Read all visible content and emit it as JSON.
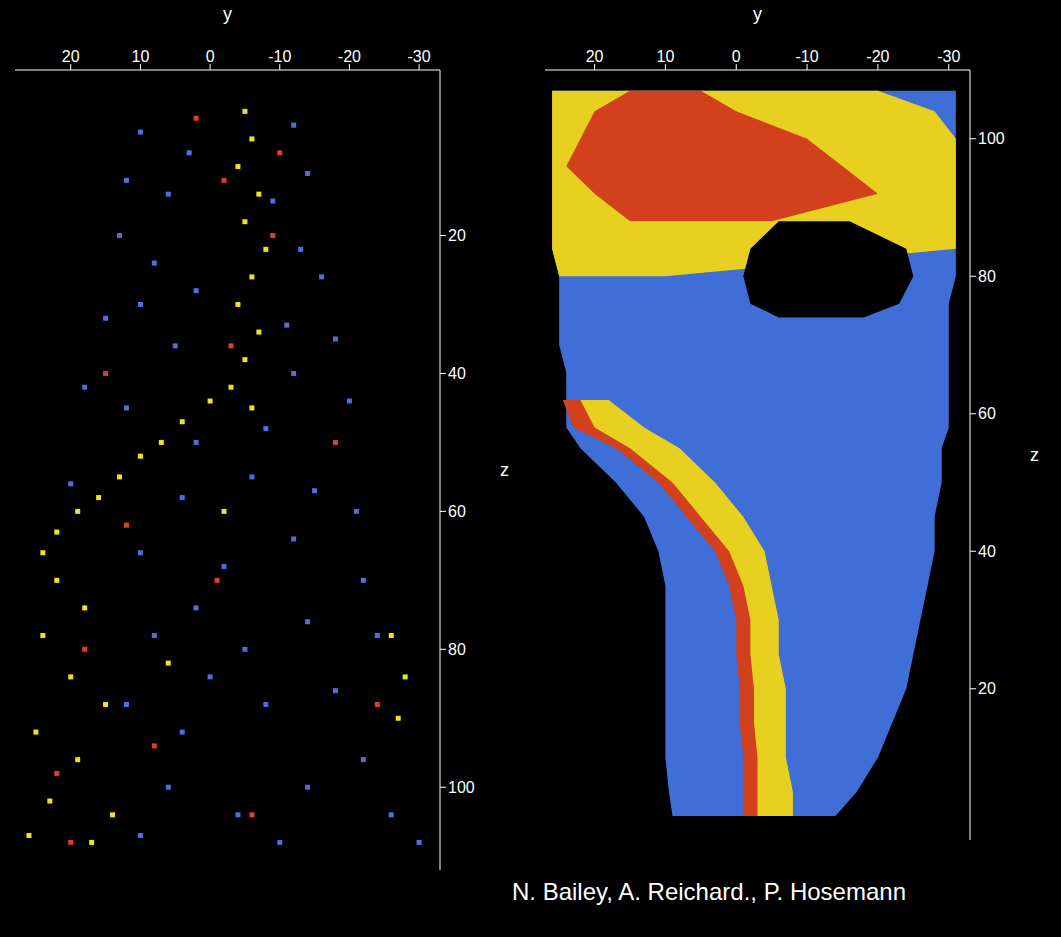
{
  "chart_data": [
    {
      "type": "scatter",
      "x_label": "y",
      "y_label": "z",
      "xlim": [
        28,
        -33
      ],
      "xticks": [
        20,
        10,
        0,
        -10,
        -20,
        -30
      ],
      "ylim": [
        112,
        -4
      ],
      "yticks": [
        20,
        40,
        60,
        80,
        100
      ],
      "grid": false,
      "marker": "square",
      "series": [
        {
          "color": "#4a6fe0",
          "values": [
            [
              10,
              5
            ],
            [
              -12,
              4
            ],
            [
              3,
              8
            ],
            [
              12,
              12
            ],
            [
              -14,
              11
            ],
            [
              6,
              14
            ],
            [
              -9,
              15
            ],
            [
              13,
              20
            ],
            [
              8,
              24
            ],
            [
              -13,
              22
            ],
            [
              -16,
              26
            ],
            [
              2,
              28
            ],
            [
              15,
              32
            ],
            [
              10,
              30
            ],
            [
              -11,
              33
            ],
            [
              -18,
              35
            ],
            [
              5,
              36
            ],
            [
              18,
              42
            ],
            [
              12,
              45
            ],
            [
              -12,
              40
            ],
            [
              -20,
              44
            ],
            [
              -8,
              48
            ],
            [
              2,
              50
            ],
            [
              20,
              56
            ],
            [
              4,
              58
            ],
            [
              -6,
              55
            ],
            [
              -15,
              57
            ],
            [
              -21,
              60
            ],
            [
              10,
              66
            ],
            [
              -2,
              68
            ],
            [
              -12,
              64
            ],
            [
              -22,
              70
            ],
            [
              2,
              74
            ],
            [
              8,
              78
            ],
            [
              -5,
              80
            ],
            [
              -14,
              76
            ],
            [
              -24,
              78
            ],
            [
              0,
              84
            ],
            [
              12,
              88
            ],
            [
              -8,
              88
            ],
            [
              -18,
              86
            ],
            [
              4,
              92
            ],
            [
              -22,
              96
            ],
            [
              6,
              100
            ],
            [
              -4,
              104
            ],
            [
              -14,
              100
            ],
            [
              -26,
              104
            ],
            [
              -30,
              108
            ],
            [
              10,
              107
            ],
            [
              -10,
              108
            ]
          ]
        },
        {
          "color": "#f2e21e",
          "values": [
            [
              -5,
              2
            ],
            [
              -6,
              6
            ],
            [
              -4,
              10
            ],
            [
              -7,
              14
            ],
            [
              -5,
              18
            ],
            [
              -8,
              22
            ],
            [
              -6,
              26
            ],
            [
              -4,
              30
            ],
            [
              -7,
              34
            ],
            [
              -5,
              38
            ],
            [
              -3,
              42
            ],
            [
              -6,
              45
            ],
            [
              0,
              44
            ],
            [
              4,
              47
            ],
            [
              7,
              50
            ],
            [
              10,
              52
            ],
            [
              13,
              55
            ],
            [
              16,
              58
            ],
            [
              19,
              60
            ],
            [
              22,
              63
            ],
            [
              24,
              66
            ],
            [
              22,
              70
            ],
            [
              18,
              74
            ],
            [
              24,
              78
            ],
            [
              20,
              84
            ],
            [
              15,
              88
            ],
            [
              25,
              92
            ],
            [
              19,
              96
            ],
            [
              23,
              102
            ],
            [
              14,
              104
            ],
            [
              26,
              107
            ],
            [
              17,
              108
            ],
            [
              -28,
              84
            ],
            [
              -27,
              90
            ],
            [
              -26,
              78
            ],
            [
              -2,
              60
            ],
            [
              6,
              82
            ]
          ]
        },
        {
          "color": "#e0401c",
          "values": [
            [
              2,
              3
            ],
            [
              -2,
              12
            ],
            [
              -9,
              20
            ],
            [
              -3,
              36
            ],
            [
              -10,
              8
            ],
            [
              12,
              62
            ],
            [
              18,
              80
            ],
            [
              22,
              98
            ],
            [
              -18,
              50
            ],
            [
              -1,
              70
            ],
            [
              8,
              94
            ],
            [
              -24,
              88
            ],
            [
              15,
              40
            ],
            [
              -6,
              104
            ],
            [
              20,
              108
            ]
          ]
        }
      ]
    },
    {
      "type": "area",
      "x_label": "y",
      "y_label": "z",
      "xlim": [
        27,
        -33
      ],
      "xticks": [
        20,
        10,
        0,
        -10,
        -20,
        -30
      ],
      "ylim": [
        110,
        -2
      ],
      "yticks": [
        20,
        40,
        60,
        80,
        100
      ],
      "grid": false,
      "annotation": "N. Bailey, A. Reichard., P. Hosemann",
      "x": [
        1.5,
        5,
        10,
        15,
        20,
        25,
        30,
        35,
        40,
        45,
        50,
        55,
        58,
        62,
        66,
        70,
        74,
        76,
        80,
        84,
        88,
        92,
        96,
        100,
        104,
        107
      ],
      "series": [
        {
          "color": "#3f6fd6",
          "values": [
            [
              -14,
              9
            ],
            [
              -17,
              9.5
            ],
            [
              -20,
              10
            ],
            [
              -22,
              10
            ],
            [
              -24,
              10
            ],
            [
              -25,
              10
            ],
            [
              -26,
              10
            ],
            [
              -27,
              10
            ],
            [
              -28,
              11
            ],
            [
              -28,
              13
            ],
            [
              -29,
              17
            ],
            [
              -29,
              22
            ],
            [
              -30,
              24
            ],
            [
              -30,
              24
            ],
            [
              -30,
              24
            ],
            [
              -30,
              25
            ],
            [
              -30,
              25
            ],
            [
              -30,
              25
            ],
            [
              -31,
              25
            ],
            [
              -31,
              26
            ],
            [
              -31,
              26
            ],
            [
              -31,
              26
            ],
            [
              -31,
              26
            ],
            [
              -31,
              26
            ],
            [
              -31,
              26
            ],
            [
              -31,
              26
            ]
          ]
        },
        {
          "color": "#e8d020",
          "values": [
            [
              -8,
              -2
            ],
            [
              -8,
              -2
            ],
            [
              -7,
              -2
            ],
            [
              -7,
              -2
            ],
            [
              -7,
              -2
            ],
            [
              -6,
              -1
            ],
            [
              -6,
              -1
            ],
            [
              -5,
              0
            ],
            [
              -4,
              2
            ],
            [
              -1,
              6
            ],
            [
              3,
              10
            ],
            [
              8,
              16
            ],
            [
              13,
              22
            ],
            [
              18,
              24
            ],
            null,
            null,
            null,
            null,
            null,
            null,
            null,
            null,
            null,
            null,
            null,
            null
          ]
        },
        {
          "color": "#d2401e",
          "values": [
            [
              -3,
              -1
            ],
            [
              -3,
              -1
            ],
            [
              -3,
              -1
            ],
            [
              -2.5,
              -0.5
            ],
            [
              -2.5,
              -0.5
            ],
            [
              -2,
              0
            ],
            [
              -2,
              0
            ],
            [
              -1,
              1
            ],
            [
              1,
              3
            ],
            [
              5,
              7
            ],
            [
              9,
              11
            ],
            [
              15,
              17
            ],
            [
              20,
              23
            ],
            [
              22,
              24.5
            ],
            null,
            null,
            null,
            null,
            null,
            null,
            null,
            null,
            null,
            null,
            null,
            null
          ]
        },
        {
          "color": "#e8d020",
          "values": [
            null,
            null,
            null,
            null,
            null,
            null,
            null,
            null,
            null,
            null,
            null,
            null,
            null,
            null,
            null,
            null,
            null,
            null,
            [
              10,
              25
            ],
            [
              -31,
              26
            ],
            [
              -31,
              26
            ],
            [
              -31,
              26
            ],
            [
              -31,
              26
            ],
            [
              -31,
              26
            ],
            [
              -28,
              26
            ],
            [
              -20,
              26
            ]
          ]
        },
        {
          "color": "#d2401e",
          "values": [
            null,
            null,
            null,
            null,
            null,
            null,
            null,
            null,
            null,
            null,
            null,
            null,
            null,
            null,
            null,
            null,
            null,
            null,
            null,
            null,
            [
              -5,
              15
            ],
            [
              -20,
              20
            ],
            [
              -15,
              24
            ],
            [
              -10,
              22
            ],
            [
              0,
              20
            ],
            [
              5,
              15
            ]
          ]
        },
        {
          "color": "#000000",
          "values": [
            null,
            null,
            null,
            null,
            null,
            null,
            null,
            null,
            null,
            null,
            null,
            null,
            null,
            null,
            null,
            null,
            [
              -18,
              -6
            ],
            [
              -23,
              -2
            ],
            [
              -25,
              -1
            ],
            [
              -24,
              -2
            ],
            [
              -16,
              -6
            ],
            null,
            null,
            null,
            null,
            null
          ]
        }
      ]
    }
  ]
}
